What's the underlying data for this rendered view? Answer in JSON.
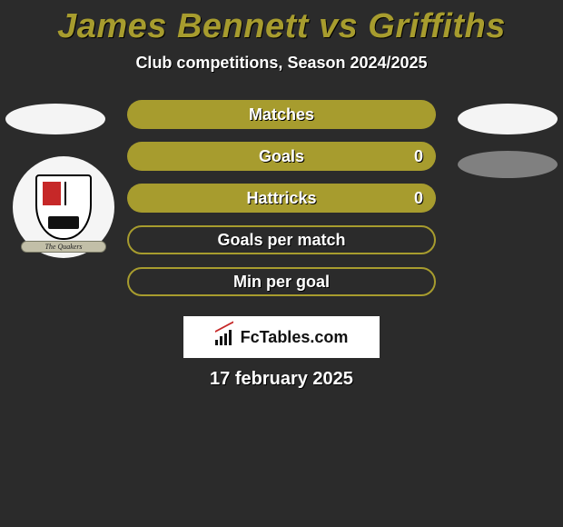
{
  "title_color": "#a79c2e",
  "background_color": "#2b2b2b",
  "title": "James Bennett vs Griffiths",
  "subtitle": "Club competitions, Season 2024/2025",
  "crest_banner": "The Quakers",
  "stats": [
    {
      "label": "Matches",
      "right_value": null,
      "fill": "#a79c2e",
      "border": "#a79c2e",
      "filled": true
    },
    {
      "label": "Goals",
      "right_value": "0",
      "fill": "#a79c2e",
      "border": "#a79c2e",
      "filled": true
    },
    {
      "label": "Hattricks",
      "right_value": "0",
      "fill": "#a79c2e",
      "border": "#a79c2e",
      "filled": true
    },
    {
      "label": "Goals per match",
      "right_value": null,
      "fill": "transparent",
      "border": "#a79c2e",
      "filled": false
    },
    {
      "label": "Min per goal",
      "right_value": null,
      "fill": "transparent",
      "border": "#a79c2e",
      "filled": false
    }
  ],
  "brand": "FcTables.com",
  "date": "17 february 2025",
  "player_oval_color": "#f4f4f4",
  "player_oval_shadow_color": "#808080"
}
